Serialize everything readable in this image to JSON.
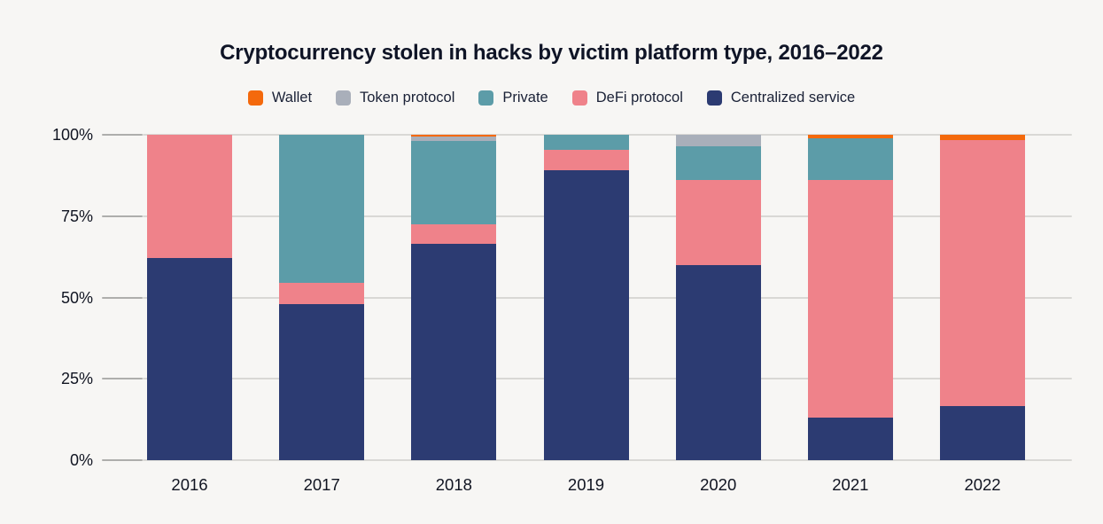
{
  "page": {
    "background": "#f7f6f4",
    "text_color": "#101421"
  },
  "title": "Cryptocurrency stolen in hacks by victim platform type, 2016–2022",
  "legend": [
    {
      "label": "Wallet",
      "color": "#f4690c"
    },
    {
      "label": "Token protocol",
      "color": "#a9afba"
    },
    {
      "label": "Private",
      "color": "#5c9ca8"
    },
    {
      "label": "DeFi protocol",
      "color": "#ef828a"
    },
    {
      "label": "Centralized service",
      "color": "#2c3b72"
    }
  ],
  "chart_data": {
    "type": "bar",
    "stacked": true,
    "unit": "percent",
    "title": "Cryptocurrency stolen in hacks by victim platform type, 2016–2022",
    "xlabel": "",
    "ylabel": "",
    "ylim": [
      0,
      100
    ],
    "yticks": [
      "0%",
      "25%",
      "50%",
      "75%",
      "100%"
    ],
    "grid": true,
    "legend_position": "top",
    "categories": [
      "2016",
      "2017",
      "2018",
      "2019",
      "2020",
      "2021",
      "2022"
    ],
    "series": [
      {
        "name": "Centralized service",
        "color": "#2c3b72",
        "values": [
          62,
          48,
          66.5,
          89,
          60,
          13,
          16.5
        ]
      },
      {
        "name": "DeFi protocol",
        "color": "#ef828a",
        "values": [
          38,
          6.5,
          6,
          6.5,
          26,
          73,
          82
        ]
      },
      {
        "name": "Private",
        "color": "#5c9ca8",
        "values": [
          0,
          45.5,
          25.5,
          4.5,
          10.5,
          13,
          0
        ]
      },
      {
        "name": "Token protocol",
        "color": "#a9afba",
        "values": [
          0,
          0,
          1.5,
          0,
          3.5,
          0,
          0
        ]
      },
      {
        "name": "Wallet",
        "color": "#f4690c",
        "values": [
          0,
          0,
          0.5,
          0,
          0,
          1,
          1.5
        ]
      }
    ]
  }
}
